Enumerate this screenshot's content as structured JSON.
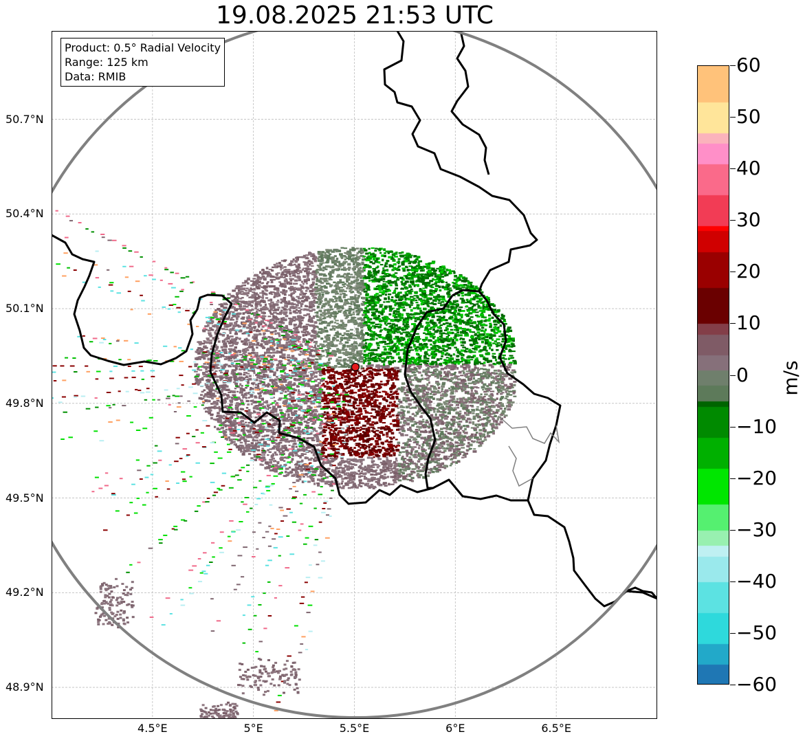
{
  "title": "19.08.2025 21:53 UTC",
  "info_box": {
    "lines": [
      "Product: 0.5° Radial Velocity",
      "Range: 125 km",
      "Data: RMIB"
    ]
  },
  "map": {
    "lon_range": [
      4.0,
      7.0
    ],
    "lat_range": [
      48.8,
      50.98
    ],
    "radar_site": {
      "lon": 5.505,
      "lat": 49.915
    },
    "range_ring_color": "#808080",
    "border_color": "#000000",
    "grid": true
  },
  "axes": {
    "lon_ticks": [
      {
        "value": 4.5,
        "label": "4.5°E"
      },
      {
        "value": 5.0,
        "label": "5°E"
      },
      {
        "value": 5.5,
        "label": "5.5°E"
      },
      {
        "value": 6.0,
        "label": "6°E"
      },
      {
        "value": 6.5,
        "label": "6.5°E"
      }
    ],
    "lat_ticks": [
      {
        "value": 48.9,
        "label": "48.9°N"
      },
      {
        "value": 49.2,
        "label": "49.2°N"
      },
      {
        "value": 49.5,
        "label": "49.5°N"
      },
      {
        "value": 49.8,
        "label": "49.8°N"
      },
      {
        "value": 50.1,
        "label": "50.1°N"
      },
      {
        "value": 50.4,
        "label": "50.4°N"
      },
      {
        "value": 50.7,
        "label": "50.7°N"
      }
    ]
  },
  "colorbar": {
    "unit": "m/s",
    "min": -60,
    "max": 60,
    "ticks": [
      {
        "value": 60,
        "label": "60"
      },
      {
        "value": 50,
        "label": "50"
      },
      {
        "value": 40,
        "label": "40"
      },
      {
        "value": 30,
        "label": "30"
      },
      {
        "value": 20,
        "label": "20"
      },
      {
        "value": 10,
        "label": "10"
      },
      {
        "value": 0,
        "label": "0"
      },
      {
        "value": -10,
        "label": "−10"
      },
      {
        "value": -20,
        "label": "−20"
      },
      {
        "value": -30,
        "label": "−30"
      },
      {
        "value": -40,
        "label": "−40"
      },
      {
        "value": -50,
        "label": "−50"
      },
      {
        "value": -60,
        "label": "−60"
      }
    ],
    "stops": [
      {
        "value": -60,
        "color": "#1f77b4"
      },
      {
        "value": -56,
        "color": "#22a9c9"
      },
      {
        "value": -52,
        "color": "#2ed9dc"
      },
      {
        "value": -46,
        "color": "#5ce2e2"
      },
      {
        "value": -40,
        "color": "#9ae9ec"
      },
      {
        "value": -35,
        "color": "#bff0f2"
      },
      {
        "value": -33,
        "color": "#98f0b0"
      },
      {
        "value": -30,
        "color": "#55f070"
      },
      {
        "value": -25,
        "color": "#00e600"
      },
      {
        "value": -18,
        "color": "#00b000"
      },
      {
        "value": -12,
        "color": "#008a00"
      },
      {
        "value": -6,
        "color": "#006400"
      },
      {
        "value": -5,
        "color": "#5d7a5a"
      },
      {
        "value": -2,
        "color": "#6f7f6c"
      },
      {
        "value": 1,
        "color": "#86707a"
      },
      {
        "value": 4,
        "color": "#7f5b66"
      },
      {
        "value": 8,
        "color": "#833e48"
      },
      {
        "value": 10,
        "color": "#6a0000"
      },
      {
        "value": 17,
        "color": "#9a0000"
      },
      {
        "value": 24,
        "color": "#d00000"
      },
      {
        "value": 28,
        "color": "#ff0000"
      },
      {
        "value": 29,
        "color": "#f23c55"
      },
      {
        "value": 35,
        "color": "#fa6a8a"
      },
      {
        "value": 41,
        "color": "#ff8fc8"
      },
      {
        "value": 45,
        "color": "#fbb3bc"
      },
      {
        "value": 47,
        "color": "#ffe59a"
      },
      {
        "value": 53,
        "color": "#ffc27a"
      },
      {
        "value": 60,
        "color": "#ffa060"
      }
    ]
  }
}
